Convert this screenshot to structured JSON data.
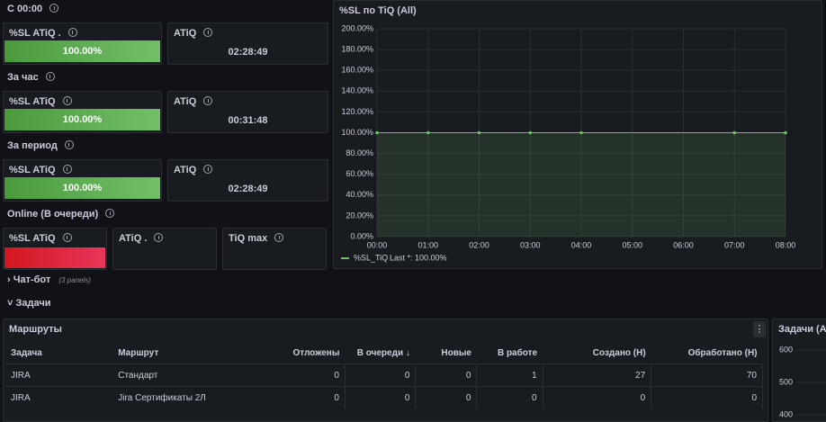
{
  "sections": [
    {
      "title": "С 00:00",
      "panels": [
        {
          "title": "%SL ATiQ .",
          "value": "100.00%"
        },
        {
          "title": "ATiQ",
          "value": "02:28:49"
        }
      ]
    },
    {
      "title": "За час",
      "panels": [
        {
          "title": "%SL ATiQ",
          "value": "100.00%"
        },
        {
          "title": "ATiQ",
          "value": "00:31:48"
        }
      ]
    },
    {
      "title": "За период",
      "panels": [
        {
          "title": "%SL ATiQ",
          "value": "100.00%"
        },
        {
          "title": "ATiQ",
          "value": "02:28:49"
        }
      ]
    },
    {
      "title": "Online (В очереди)",
      "panels": [
        {
          "title": "%SL ATiQ"
        },
        {
          "title": "ATiQ ."
        },
        {
          "title": "TiQ max"
        }
      ]
    }
  ],
  "chart_data": {
    "type": "line",
    "title": "%SL по TiQ (All)",
    "x": [
      "00:00",
      "01:00",
      "02:00",
      "03:00",
      "04:00",
      "07:00",
      "08:00"
    ],
    "series": [
      {
        "name": "%SL_TiQ",
        "color": "#73bf69",
        "values": [
          100,
          100,
          100,
          100,
          100,
          100,
          100
        ],
        "legend_calc": "Last *: 100.00%"
      }
    ],
    "xticks": [
      "00:00",
      "01:00",
      "02:00",
      "03:00",
      "04:00",
      "05:00",
      "06:00",
      "07:00",
      "08:00"
    ],
    "ylim": [
      0,
      200
    ],
    "yticks": [
      {
        "value": 0,
        "label": "0.00%"
      },
      {
        "value": 20,
        "label": "20.00%"
      },
      {
        "value": 40,
        "label": "40.00%"
      },
      {
        "value": 60,
        "label": "60.00%"
      },
      {
        "value": 80,
        "label": "80.00%"
      },
      {
        "value": 100,
        "label": "100.00%"
      },
      {
        "value": 120,
        "label": "120.00%"
      },
      {
        "value": 140,
        "label": "140.00%"
      },
      {
        "value": 160,
        "label": "160.00%"
      },
      {
        "value": 180,
        "label": "180.00%"
      },
      {
        "value": 200,
        "label": "200.00%"
      }
    ],
    "grid": true
  },
  "rows": [
    {
      "title": "Чат-бот",
      "note": "(3 panels)"
    },
    {
      "title": "Задачи"
    }
  ],
  "table": {
    "title": "Маршруты",
    "columns": [
      "Задача",
      "Маршрут",
      "Отложены",
      "В очереди",
      "Новые",
      "В работе",
      "Создано (Н)",
      "Обработано (Н)"
    ],
    "rows": [
      [
        "JIRA",
        "Стандарт",
        0,
        0,
        0,
        1,
        27,
        70
      ],
      [
        "JIRA",
        "Jira Сертификаты 2Л",
        0,
        0,
        0,
        0,
        0,
        0
      ]
    ]
  },
  "side_panel": {
    "title": "Задачи (All)",
    "yticks": [
      600,
      500,
      400
    ]
  }
}
